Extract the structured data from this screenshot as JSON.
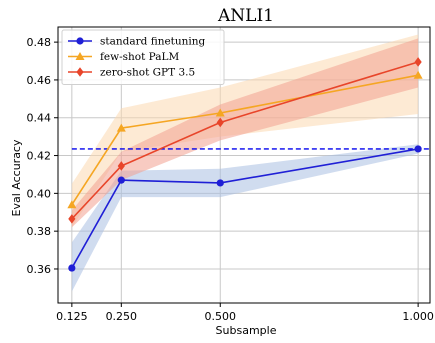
{
  "chart_data": {
    "type": "line",
    "title": "ANLI1",
    "xlabel": "Subsample",
    "ylabel": "Eval Accuracy",
    "x": [
      0.125,
      0.25,
      0.5,
      1.0
    ],
    "x_ticks": [
      0.125,
      0.25,
      0.5,
      1.0
    ],
    "x_tick_labels": [
      "0.125",
      "0.250",
      "0.500",
      "1.000"
    ],
    "y_ticks": [
      0.36,
      0.38,
      0.4,
      0.42,
      0.44,
      0.46,
      0.48
    ],
    "y_tick_labels": [
      "0.36",
      "0.38",
      "0.40",
      "0.42",
      "0.44",
      "0.46",
      "0.48"
    ],
    "xlim": [
      0.09,
      1.03
    ],
    "ylim": [
      0.342,
      0.488
    ],
    "grid": true,
    "legend_position": "top-left",
    "reference_line": {
      "y": 0.4235,
      "color": "#0000ee",
      "style": "dashed"
    },
    "series": [
      {
        "name": "standard finetuning",
        "color": "#1f1fd6",
        "band_color": "#a9bfe2",
        "marker": "circle",
        "values": [
          0.3605,
          0.407,
          0.4055,
          0.4235
        ],
        "lower": [
          0.348,
          0.398,
          0.398,
          0.421
        ],
        "upper": [
          0.374,
          0.412,
          0.413,
          0.426
        ]
      },
      {
        "name": "few-shot PaLM",
        "color": "#f5a623",
        "band_color": "#fbd9b0",
        "marker": "triangle",
        "values": [
          0.394,
          0.4345,
          0.4425,
          0.4625
        ],
        "lower": [
          0.382,
          0.422,
          0.43,
          0.442
        ],
        "upper": [
          0.405,
          0.445,
          0.456,
          0.484
        ]
      },
      {
        "name": "zero-shot GPT 3.5",
        "color": "#e8452a",
        "band_color": "#f2a090",
        "marker": "diamond",
        "values": [
          0.3865,
          0.4145,
          0.4375,
          0.4695
        ],
        "lower": [
          0.382,
          0.407,
          0.428,
          0.456
        ],
        "upper": [
          0.391,
          0.422,
          0.447,
          0.482
        ]
      }
    ]
  }
}
